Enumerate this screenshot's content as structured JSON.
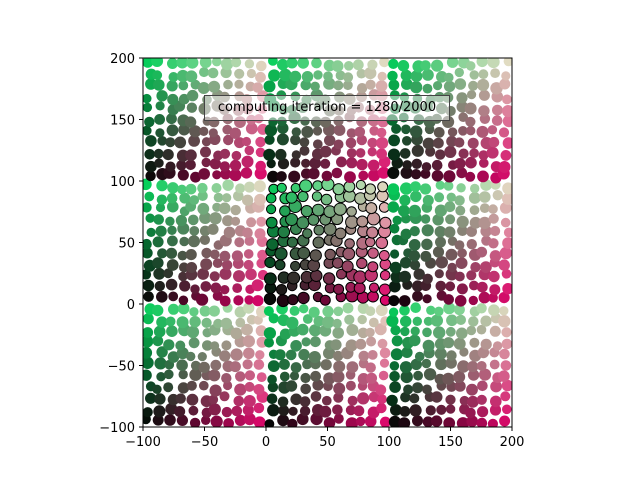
{
  "chart_data": {
    "type": "scatter",
    "title": "",
    "xlabel": "",
    "ylabel": "",
    "xlim": [
      -100,
      200
    ],
    "ylim": [
      -100,
      200
    ],
    "grid": false,
    "x_ticks": [
      "−100",
      "−50",
      "0",
      "50",
      "100",
      "150",
      "200"
    ],
    "y_ticks": [
      "−100",
      "−50",
      "0",
      "50",
      "100",
      "150",
      "200"
    ],
    "tile_period": 100,
    "highlighted_tile": {
      "x": [
        0,
        100
      ],
      "y": [
        0,
        100
      ],
      "edgecolor": "#000000"
    },
    "corner_colors": {
      "top_left": "#00d45a",
      "top_right": "#e8e2c8",
      "bottom_left": "#000000",
      "bottom_right": "#e0006a"
    },
    "annotation": "computing iteration = 1280/2000"
  },
  "status": {
    "text": "computing iteration = 1280/2000"
  }
}
